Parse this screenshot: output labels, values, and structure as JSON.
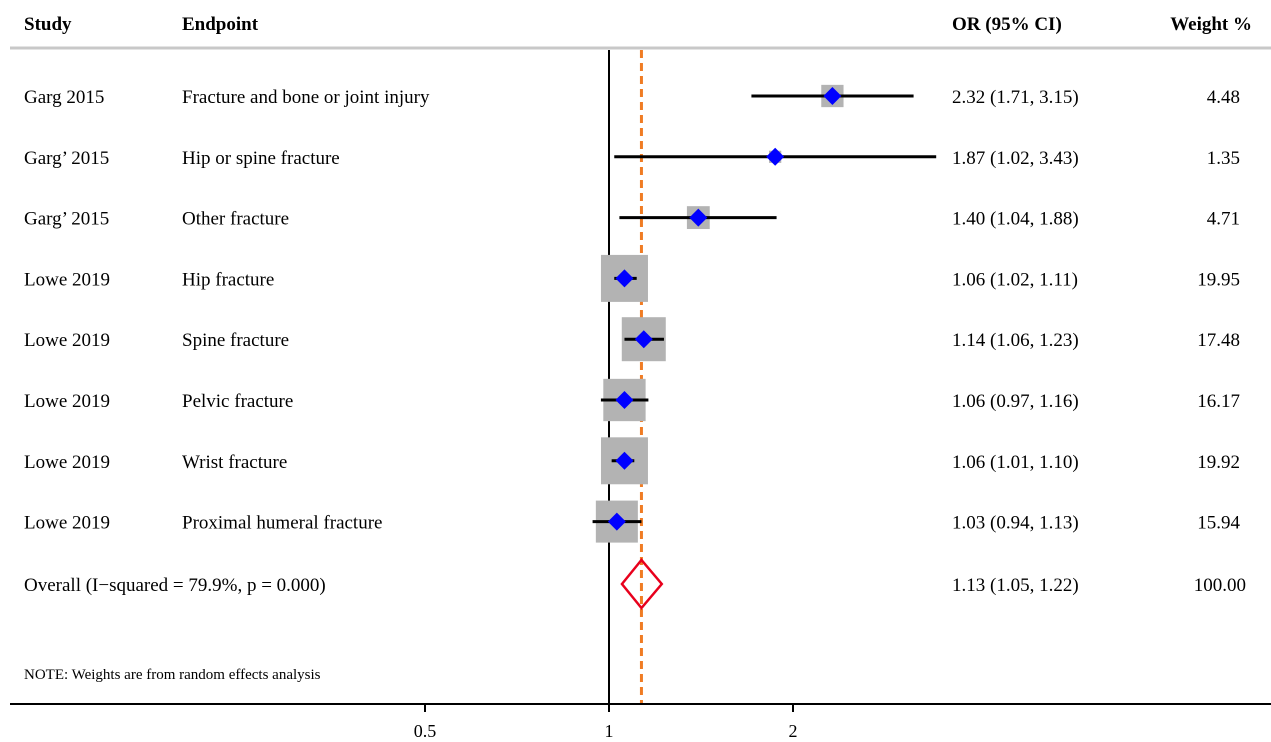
{
  "headers": {
    "study": "Study",
    "endpoint": "Endpoint",
    "or_ci": "OR (95% CI)",
    "weight": "Weight %"
  },
  "rows": [
    {
      "study": "Garg 2015",
      "endpoint": "Fracture and bone or joint injury",
      "or_text": "2.32 (1.71, 3.15)",
      "weight_text": "4.48"
    },
    {
      "study": "Garg’ 2015",
      "endpoint": "Hip or spine fracture",
      "or_text": "1.87 (1.02, 3.43)",
      "weight_text": "1.35"
    },
    {
      "study": "Garg’ 2015",
      "endpoint": "Other fracture",
      "or_text": "1.40 (1.04, 1.88)",
      "weight_text": "4.71"
    },
    {
      "study": "Lowe 2019",
      "endpoint": "Hip fracture",
      "or_text": "1.06 (1.02, 1.11)",
      "weight_text": "19.95"
    },
    {
      "study": "Lowe 2019",
      "endpoint": "Spine fracture",
      "or_text": "1.14 (1.06, 1.23)",
      "weight_text": "17.48"
    },
    {
      "study": "Lowe 2019",
      "endpoint": "Pelvic fracture",
      "or_text": "1.06 (0.97, 1.16)",
      "weight_text": "16.17"
    },
    {
      "study": "Lowe 2019",
      "endpoint": "Wrist fracture",
      "or_text": "1.06 (1.01, 1.10)",
      "weight_text": "19.92"
    },
    {
      "study": "Lowe 2019",
      "endpoint": "Proximal humeral fracture",
      "or_text": "1.03 (0.94, 1.13)",
      "weight_text": "15.94"
    }
  ],
  "overall": {
    "label": "Overall  (I−squared = 79.9%, p = 0.000)",
    "or_text": "1.13 (1.05, 1.22)",
    "weight_text": "100.00"
  },
  "note": "NOTE: Weights are from random effects analysis",
  "colors": {
    "point": "#0000ff",
    "weight_box": "#b3b3b3",
    "ci_line": "#000000",
    "overall_diamond": "#e8001c",
    "overall_line": "#f07c24",
    "null_line": "#000000",
    "header_rule": "#c8c8c8"
  },
  "chart_data": {
    "type": "forest",
    "x_scale": "log",
    "x_ticks": [
      0.5,
      1,
      2
    ],
    "x_tick_labels": [
      "0.5",
      "1",
      "2"
    ],
    "null_value": 1,
    "series": [
      {
        "or": 2.32,
        "lo": 1.71,
        "hi": 3.15,
        "weight": 4.48
      },
      {
        "or": 1.87,
        "lo": 1.02,
        "hi": 3.43,
        "weight": 1.35
      },
      {
        "or": 1.4,
        "lo": 1.04,
        "hi": 1.88,
        "weight": 4.71
      },
      {
        "or": 1.06,
        "lo": 1.02,
        "hi": 1.11,
        "weight": 19.95
      },
      {
        "or": 1.14,
        "lo": 1.06,
        "hi": 1.23,
        "weight": 17.48
      },
      {
        "or": 1.06,
        "lo": 0.97,
        "hi": 1.16,
        "weight": 16.17
      },
      {
        "or": 1.06,
        "lo": 1.01,
        "hi": 1.1,
        "weight": 19.92
      },
      {
        "or": 1.03,
        "lo": 0.94,
        "hi": 1.13,
        "weight": 15.94
      }
    ],
    "overall": {
      "or": 1.13,
      "lo": 1.05,
      "hi": 1.22
    }
  }
}
